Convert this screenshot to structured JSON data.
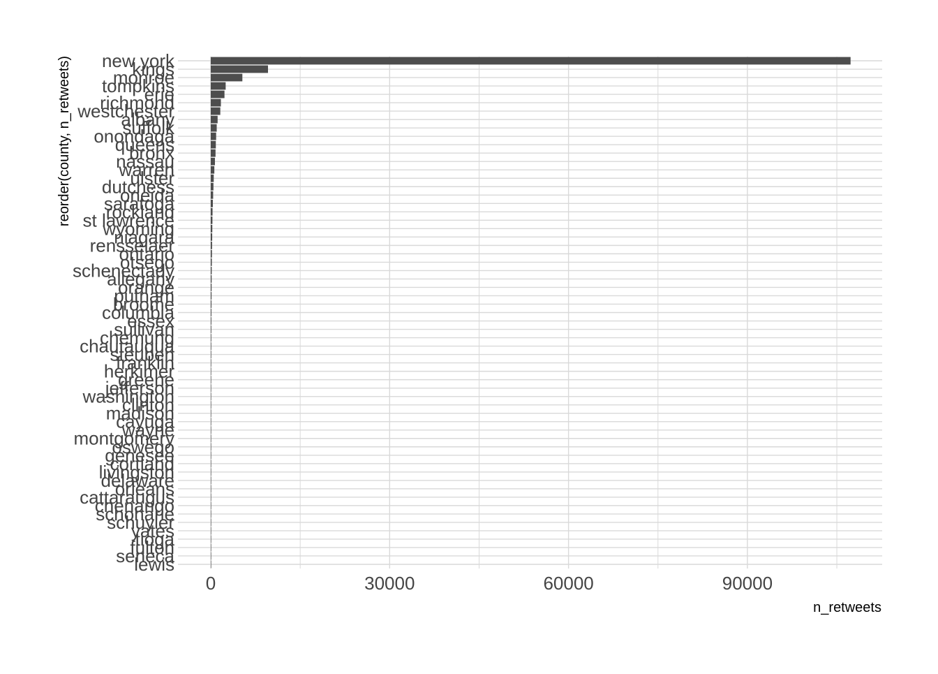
{
  "chart_data": {
    "type": "bar",
    "orientation": "horizontal",
    "title": "",
    "xlabel": "n_retweets",
    "ylabel": "reorder(county, n_retweets)",
    "xlim": [
      -5500,
      112600
    ],
    "x_ticks": [
      0,
      30000,
      60000,
      90000
    ],
    "x_tick_labels": [
      "0",
      "30000",
      "60000",
      "90000"
    ],
    "grid": true,
    "bar_color": "#4d4d4d",
    "grid_color": "#d9d9d9",
    "categories": [
      "new york",
      "kings",
      "monroe",
      "tompkins",
      "erie",
      "richmond",
      "westchester",
      "albany",
      "suffolk",
      "onondaga",
      "queens",
      "bronx",
      "nassau",
      "warren",
      "ulster",
      "dutchess",
      "oneida",
      "saratoga",
      "rockland",
      "st lawrence",
      "wyoming",
      "niagara",
      "rensselaer",
      "ontario",
      "otsego",
      "schenectady",
      "allegany",
      "orange",
      "putnam",
      "broome",
      "columbia",
      "essex",
      "sullivan",
      "chemung",
      "chautauqua",
      "steuben",
      "franklin",
      "herkimer",
      "greene",
      "jefferson",
      "washington",
      "clinton",
      "madison",
      "cayuga",
      "wayne",
      "montgomery",
      "oswego",
      "genesee",
      "cortland",
      "livingston",
      "delaware",
      "orleans",
      "cattaraugus",
      "chenango",
      "schoharie",
      "schuyler",
      "yates",
      "tioga",
      "fulton",
      "seneca",
      "lewis"
    ],
    "values": [
      107300,
      9600,
      5300,
      2500,
      2300,
      1700,
      1600,
      1150,
      1000,
      900,
      850,
      800,
      700,
      600,
      500,
      450,
      400,
      350,
      300,
      280,
      260,
      240,
      220,
      200,
      180,
      160,
      150,
      140,
      130,
      120,
      110,
      100,
      95,
      90,
      85,
      80,
      75,
      70,
      65,
      60,
      55,
      50,
      45,
      40,
      36,
      32,
      28,
      25,
      22,
      19,
      17,
      15,
      13,
      11,
      9,
      8,
      7,
      6,
      5,
      4,
      3
    ]
  }
}
